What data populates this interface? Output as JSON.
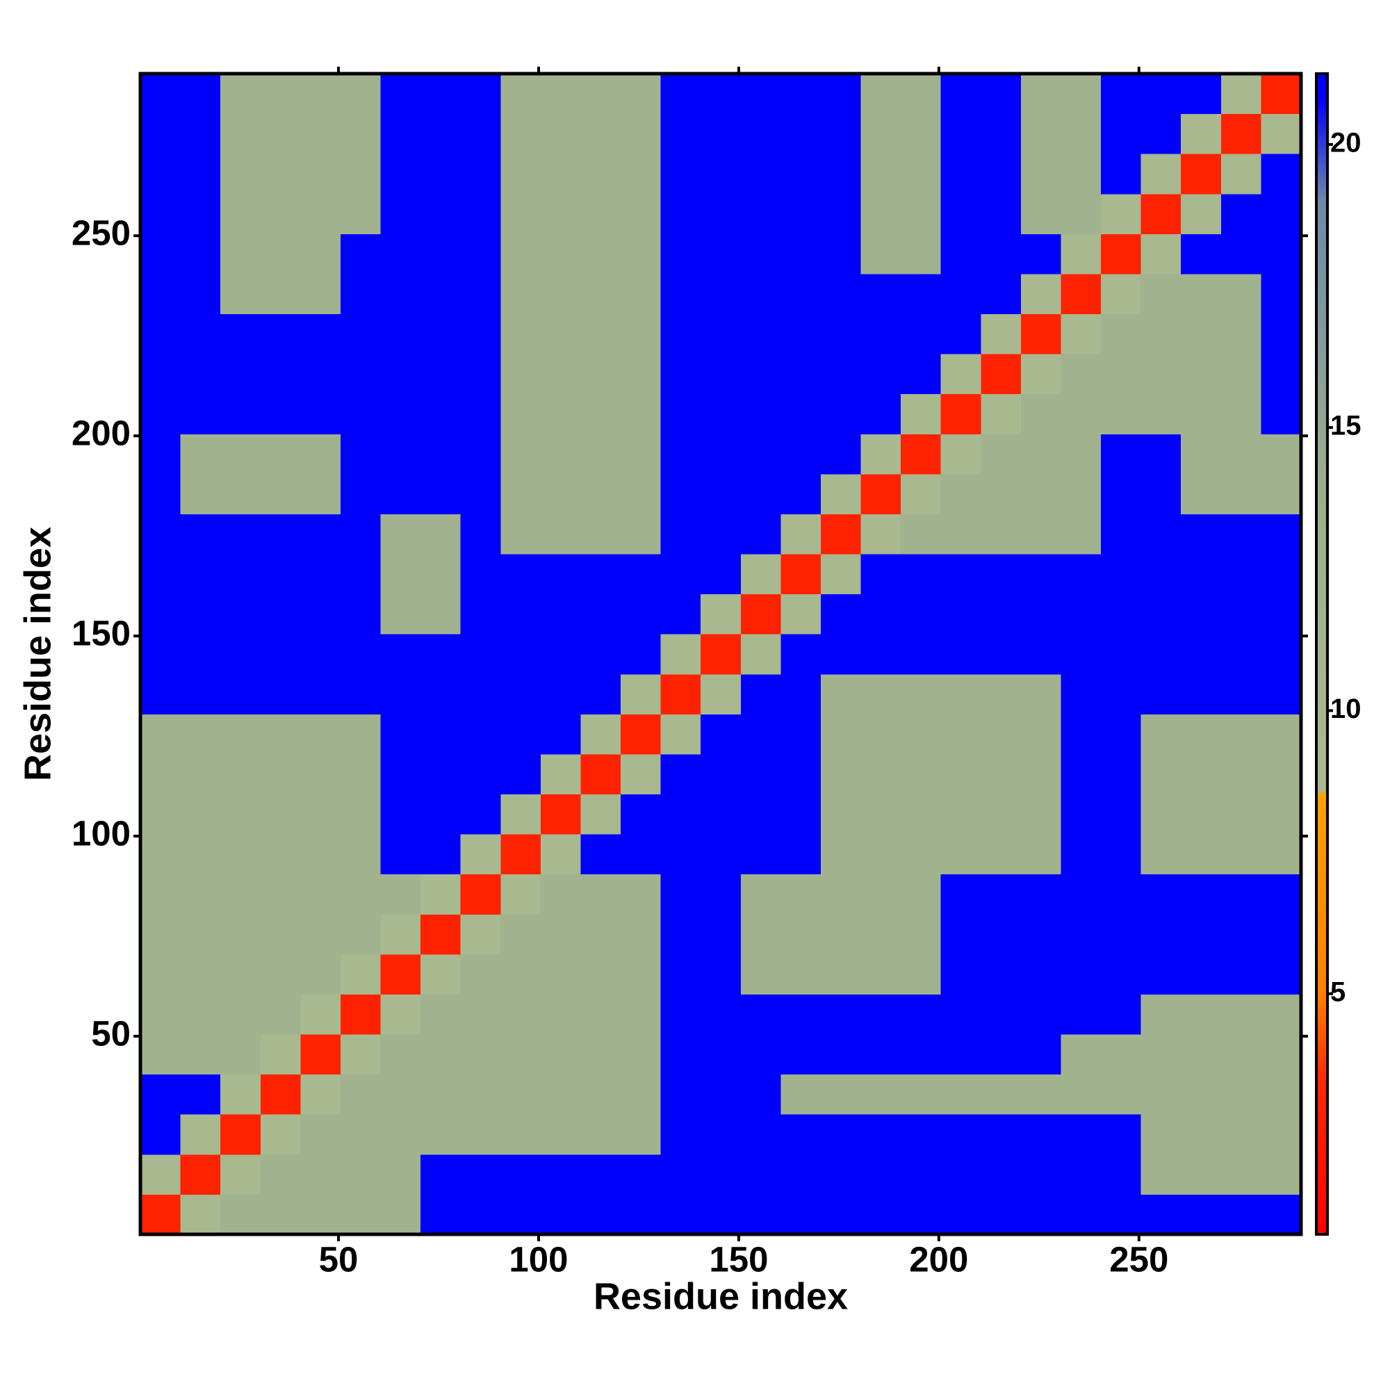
{
  "chart_data": {
    "type": "heatmap",
    "x_label": "Residue index",
    "y_label": "Residue index",
    "x": [
      5.5,
      15.5,
      25.5,
      35.5,
      45.5,
      55.5,
      65.5,
      75.5,
      85.5,
      95.5,
      105.5,
      115.5,
      125.5,
      135.5,
      145.5,
      155.5,
      165.5,
      175.5,
      185.5,
      195.5,
      205.5,
      215.5,
      225.5,
      235.5,
      245.5,
      255.5,
      265.5,
      275.5,
      285.5
    ],
    "y": [
      5.5,
      15.5,
      25.5,
      35.5,
      45.5,
      55.5,
      65.5,
      75.5,
      85.5,
      95.5,
      105.5,
      115.5,
      125.5,
      135.5,
      145.5,
      155.5,
      165.5,
      175.5,
      185.5,
      195.5,
      205.5,
      215.5,
      225.5,
      235.5,
      245.5,
      255.5,
      265.5,
      275.5,
      285.5
    ],
    "xlim": [
      0.5,
      290.5
    ],
    "ylim": [
      0.5,
      290.5
    ],
    "xticks": [
      50,
      100,
      150,
      200,
      250
    ],
    "yticks": [
      50,
      100,
      150,
      200,
      250
    ],
    "zlim": [
      0.75,
      21.25
    ],
    "zticks": [
      5,
      10,
      15,
      20
    ],
    "colorscale": [
      [
        0.75,
        "#ff0000"
      ],
      [
        3.5,
        "#ff2a00"
      ],
      [
        5,
        "#ff8000"
      ],
      [
        8.5,
        "#ffa000"
      ],
      [
        8.6,
        "#a9b98f"
      ],
      [
        14,
        "#9cae8f"
      ],
      [
        19,
        "#6f88a8"
      ],
      [
        20.8,
        "#0000ff"
      ],
      [
        21.25,
        "#0000ff"
      ]
    ],
    "z": [
      [
        3,
        9,
        12,
        12,
        12,
        12,
        12,
        21,
        21,
        21,
        21,
        21,
        21,
        21,
        21,
        21,
        21,
        21,
        21,
        21,
        21,
        21,
        21,
        21,
        21,
        21,
        21,
        21,
        21
      ],
      [
        9,
        3,
        9,
        12,
        12,
        12,
        12,
        21,
        21,
        21,
        21,
        21,
        21,
        21,
        21,
        21,
        21,
        21,
        21,
        21,
        21,
        21,
        21,
        21,
        21,
        12,
        12,
        12,
        12
      ],
      [
        21,
        9,
        3,
        9,
        12,
        12,
        12,
        12,
        12,
        12,
        12,
        12,
        12,
        21,
        21,
        21,
        21,
        21,
        21,
        21,
        21,
        21,
        21,
        21,
        21,
        12,
        12,
        12,
        12
      ],
      [
        21,
        21,
        9,
        3,
        9,
        12,
        12,
        12,
        12,
        12,
        12,
        12,
        12,
        21,
        21,
        21,
        12,
        12,
        12,
        12,
        12,
        12,
        12,
        12,
        12,
        12,
        12,
        12,
        12
      ],
      [
        12,
        12,
        12,
        9,
        3,
        9,
        12,
        12,
        12,
        12,
        12,
        12,
        12,
        21,
        21,
        21,
        21,
        21,
        21,
        21,
        21,
        21,
        21,
        12,
        12,
        12,
        12,
        12,
        12
      ],
      [
        12,
        12,
        12,
        12,
        9,
        3,
        9,
        12,
        12,
        12,
        12,
        12,
        12,
        21,
        21,
        21,
        21,
        21,
        21,
        21,
        21,
        21,
        21,
        21,
        21,
        12,
        12,
        12,
        12
      ],
      [
        12,
        12,
        12,
        12,
        12,
        9,
        3,
        9,
        12,
        12,
        12,
        12,
        12,
        21,
        21,
        12,
        12,
        12,
        12,
        12,
        21,
        21,
        21,
        21,
        21,
        21,
        21,
        21,
        21
      ],
      [
        12,
        12,
        12,
        12,
        12,
        12,
        9,
        3,
        9,
        12,
        12,
        12,
        12,
        21,
        21,
        12,
        12,
        12,
        12,
        12,
        21,
        21,
        21,
        21,
        21,
        21,
        21,
        21,
        21
      ],
      [
        12,
        12,
        12,
        12,
        12,
        12,
        12,
        9,
        3,
        9,
        12,
        12,
        12,
        21,
        21,
        12,
        12,
        12,
        12,
        12,
        21,
        21,
        21,
        21,
        21,
        21,
        21,
        21,
        21
      ],
      [
        12,
        12,
        12,
        12,
        12,
        12,
        21,
        21,
        9,
        3,
        9,
        21,
        21,
        21,
        21,
        21,
        21,
        12,
        12,
        12,
        12,
        12,
        12,
        21,
        21,
        12,
        12,
        12,
        12
      ],
      [
        12,
        12,
        12,
        12,
        12,
        12,
        21,
        21,
        21,
        9,
        3,
        9,
        21,
        21,
        21,
        21,
        21,
        12,
        12,
        12,
        12,
        12,
        12,
        21,
        21,
        12,
        12,
        12,
        12
      ],
      [
        12,
        12,
        12,
        12,
        12,
        12,
        21,
        21,
        21,
        21,
        9,
        3,
        9,
        21,
        21,
        21,
        21,
        12,
        12,
        12,
        12,
        12,
        12,
        21,
        21,
        12,
        12,
        12,
        12
      ],
      [
        12,
        12,
        12,
        12,
        12,
        12,
        21,
        21,
        21,
        21,
        21,
        9,
        3,
        9,
        21,
        21,
        21,
        12,
        12,
        12,
        12,
        12,
        12,
        21,
        21,
        12,
        12,
        12,
        12
      ],
      [
        21,
        21,
        21,
        21,
        21,
        21,
        21,
        21,
        21,
        21,
        21,
        21,
        9,
        3,
        9,
        21,
        21,
        12,
        12,
        12,
        12,
        12,
        12,
        21,
        21,
        21,
        21,
        21,
        21
      ],
      [
        21,
        21,
        21,
        21,
        21,
        21,
        21,
        21,
        21,
        21,
        21,
        21,
        21,
        9,
        3,
        9,
        21,
        21,
        21,
        21,
        21,
        21,
        21,
        21,
        21,
        21,
        21,
        21,
        21
      ],
      [
        21,
        21,
        21,
        21,
        21,
        21,
        12,
        12,
        21,
        21,
        21,
        21,
        21,
        21,
        9,
        3,
        9,
        21,
        21,
        21,
        21,
        21,
        21,
        21,
        21,
        21,
        21,
        21,
        21
      ],
      [
        21,
        21,
        21,
        21,
        21,
        21,
        12,
        12,
        21,
        21,
        21,
        21,
        21,
        21,
        21,
        9,
        3,
        9,
        21,
        21,
        21,
        21,
        21,
        21,
        21,
        21,
        21,
        21,
        21
      ],
      [
        21,
        21,
        21,
        21,
        21,
        21,
        12,
        12,
        21,
        12,
        12,
        12,
        12,
        21,
        21,
        21,
        9,
        3,
        9,
        12,
        12,
        12,
        12,
        12,
        21,
        21,
        21,
        21,
        21
      ],
      [
        21,
        12,
        12,
        12,
        12,
        21,
        21,
        21,
        21,
        12,
        12,
        12,
        12,
        21,
        21,
        21,
        21,
        9,
        3,
        9,
        12,
        12,
        12,
        12,
        21,
        21,
        12,
        12,
        12
      ],
      [
        21,
        12,
        12,
        12,
        12,
        21,
        21,
        21,
        21,
        12,
        12,
        12,
        12,
        21,
        21,
        21,
        21,
        21,
        9,
        3,
        9,
        12,
        12,
        12,
        21,
        21,
        12,
        12,
        12
      ],
      [
        21,
        21,
        21,
        21,
        21,
        21,
        21,
        21,
        21,
        12,
        12,
        12,
        12,
        21,
        21,
        21,
        21,
        21,
        21,
        9,
        3,
        9,
        12,
        12,
        12,
        12,
        12,
        12,
        21
      ],
      [
        21,
        21,
        21,
        21,
        21,
        21,
        21,
        21,
        21,
        12,
        12,
        12,
        12,
        21,
        21,
        21,
        21,
        21,
        21,
        21,
        9,
        3,
        9,
        12,
        12,
        12,
        12,
        12,
        21
      ],
      [
        21,
        21,
        21,
        21,
        21,
        21,
        21,
        21,
        21,
        12,
        12,
        12,
        12,
        21,
        21,
        21,
        21,
        21,
        21,
        21,
        21,
        9,
        3,
        9,
        12,
        12,
        12,
        12,
        21
      ],
      [
        21,
        21,
        12,
        12,
        12,
        21,
        21,
        21,
        21,
        12,
        12,
        12,
        12,
        21,
        21,
        21,
        21,
        21,
        21,
        21,
        21,
        21,
        9,
        3,
        9,
        12,
        12,
        12,
        21
      ],
      [
        21,
        21,
        12,
        12,
        12,
        21,
        21,
        21,
        21,
        12,
        12,
        12,
        12,
        21,
        21,
        21,
        21,
        21,
        12,
        12,
        21,
        21,
        21,
        9,
        3,
        9,
        21,
        21,
        21
      ],
      [
        21,
        21,
        12,
        12,
        12,
        12,
        21,
        21,
        21,
        12,
        12,
        12,
        12,
        21,
        21,
        21,
        21,
        21,
        12,
        12,
        21,
        21,
        12,
        12,
        9,
        3,
        9,
        21,
        21
      ],
      [
        21,
        21,
        12,
        12,
        12,
        12,
        21,
        21,
        21,
        12,
        12,
        12,
        12,
        21,
        21,
        21,
        21,
        21,
        12,
        12,
        21,
        21,
        12,
        12,
        21,
        9,
        3,
        9,
        21
      ],
      [
        21,
        21,
        12,
        12,
        12,
        12,
        21,
        21,
        21,
        12,
        12,
        12,
        12,
        21,
        21,
        21,
        21,
        21,
        12,
        12,
        21,
        21,
        12,
        12,
        21,
        21,
        9,
        3,
        9
      ],
      [
        21,
        21,
        12,
        12,
        12,
        12,
        21,
        21,
        21,
        12,
        12,
        12,
        12,
        21,
        21,
        21,
        21,
        21,
        12,
        12,
        21,
        21,
        12,
        12,
        21,
        21,
        21,
        9,
        3
      ]
    ]
  }
}
